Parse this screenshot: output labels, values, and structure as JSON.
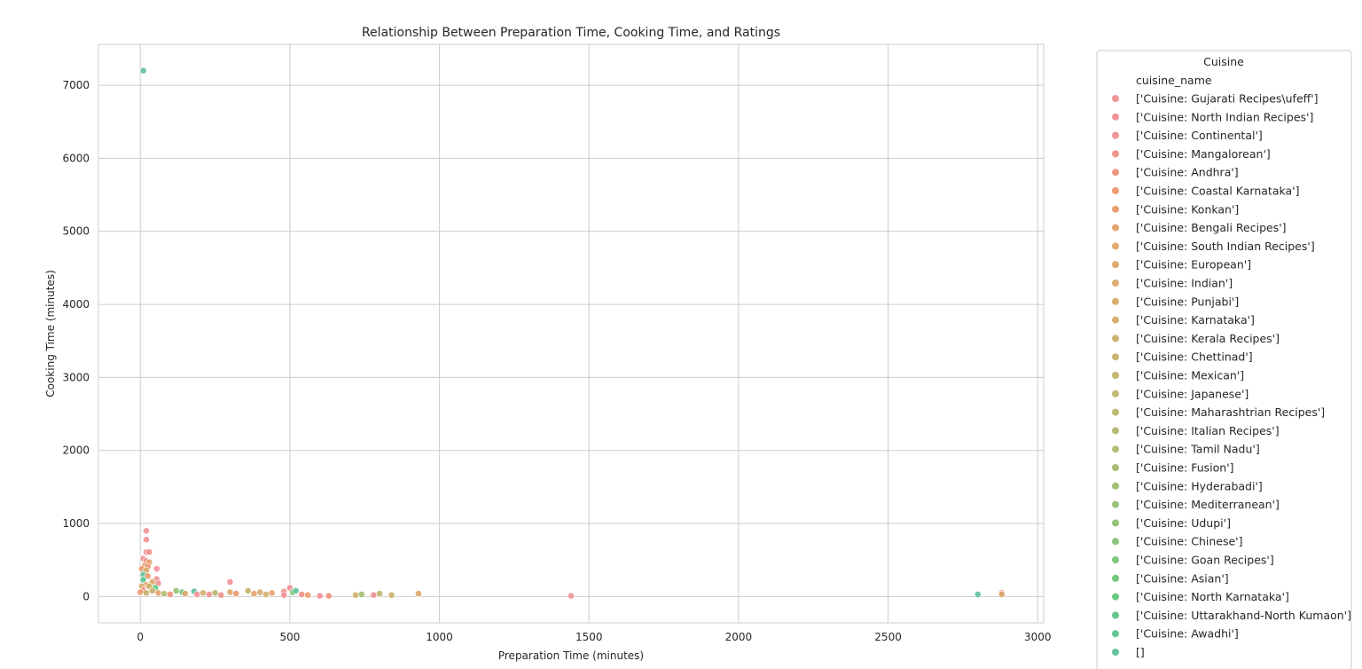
{
  "chart_data": {
    "type": "scatter",
    "title": "Relationship Between Preparation Time, Cooking Time, and Ratings",
    "xlabel": "Preparation Time (minutes)",
    "ylabel": "Cooking Time (minutes)",
    "xlim": [
      -140,
      3020
    ],
    "ylim": [
      -360,
      7560
    ],
    "xticks": [
      0,
      500,
      1000,
      1500,
      2000,
      2500,
      3000
    ],
    "yticks": [
      0,
      1000,
      2000,
      3000,
      4000,
      5000,
      6000,
      7000
    ],
    "grid": true,
    "legend": {
      "title": "Cuisine",
      "subtitle": "cuisine_name",
      "placement": "outside-right",
      "entries": [
        {
          "label": "['Cuisine: Gujarati Recipes\\ufeff']",
          "color": "#f08a8e"
        },
        {
          "label": "['Cuisine: North Indian Recipes']",
          "color": "#f08a8e"
        },
        {
          "label": "['Cuisine: Continental']",
          "color": "#f08b89"
        },
        {
          "label": "['Cuisine: Mangalorean']",
          "color": "#f08b82"
        },
        {
          "label": "['Cuisine: Andhra']",
          "color": "#ef8c73"
        },
        {
          "label": "['Cuisine: Coastal Karnataka']",
          "color": "#ec9162"
        },
        {
          "label": "['Cuisine: Konkan']",
          "color": "#e99660"
        },
        {
          "label": "['Cuisine: Bengali Recipes']",
          "color": "#e49b60"
        },
        {
          "label": "['Cuisine: South Indian Recipes']",
          "color": "#e09e60"
        },
        {
          "label": "['Cuisine: European']",
          "color": "#dca160"
        },
        {
          "label": "['Cuisine: Indian']",
          "color": "#d9a35f"
        },
        {
          "label": "['Cuisine: Punjabi']",
          "color": "#d5a55f"
        },
        {
          "label": "['Cuisine: Karnataka']",
          "color": "#d0a860"
        },
        {
          "label": "['Cuisine: Kerala Recipes']",
          "color": "#cbaa60"
        },
        {
          "label": "['Cuisine: Chettinad']",
          "color": "#c6ac60"
        },
        {
          "label": "['Cuisine: Mexican']",
          "color": "#c1ae61"
        },
        {
          "label": "['Cuisine: Japanese']",
          "color": "#bbb062"
        },
        {
          "label": "['Cuisine: Maharashtrian Recipes']",
          "color": "#b5b263"
        },
        {
          "label": "['Cuisine: Italian Recipes']",
          "color": "#aeb464"
        },
        {
          "label": "['Cuisine: Tamil Nadu']",
          "color": "#a7b666"
        },
        {
          "label": "['Cuisine: Fusion']",
          "color": "#a0b867"
        },
        {
          "label": "['Cuisine: Hyderabadi']",
          "color": "#98ba68"
        },
        {
          "label": "['Cuisine: Mediterranean']",
          "color": "#8fbc69"
        },
        {
          "label": "['Cuisine: Udupi']",
          "color": "#86be6a"
        },
        {
          "label": "['Cuisine: Chinese']",
          "color": "#7cbf6b"
        },
        {
          "label": "['Cuisine: Goan Recipes']",
          "color": "#72c06c"
        },
        {
          "label": "['Cuisine: Asian']",
          "color": "#66c16e"
        },
        {
          "label": "['Cuisine: North Karnataka']",
          "color": "#5ac173"
        },
        {
          "label": "['Cuisine: Uttarakhand-North Kumaon']",
          "color": "#54c17c"
        },
        {
          "label": "['Cuisine: Awadhi']",
          "color": "#52c087"
        },
        {
          "label": "[]",
          "color": "#55bd92"
        }
      ]
    },
    "points": [
      {
        "x": 10,
        "y": 7200,
        "c": 30
      },
      {
        "x": 20,
        "y": 900,
        "c": 1
      },
      {
        "x": 20,
        "y": 780,
        "c": 2
      },
      {
        "x": 20,
        "y": 610,
        "c": 0
      },
      {
        "x": 30,
        "y": 610,
        "c": 3
      },
      {
        "x": 10,
        "y": 520,
        "c": 1
      },
      {
        "x": 20,
        "y": 490,
        "c": 2
      },
      {
        "x": 30,
        "y": 470,
        "c": 8
      },
      {
        "x": 15,
        "y": 430,
        "c": 9
      },
      {
        "x": 25,
        "y": 410,
        "c": 4
      },
      {
        "x": 5,
        "y": 380,
        "c": 6
      },
      {
        "x": 55,
        "y": 380,
        "c": 1
      },
      {
        "x": 20,
        "y": 360,
        "c": 12
      },
      {
        "x": 10,
        "y": 300,
        "c": 30
      },
      {
        "x": 25,
        "y": 280,
        "c": 5
      },
      {
        "x": 55,
        "y": 240,
        "c": 0
      },
      {
        "x": 10,
        "y": 230,
        "c": 29
      },
      {
        "x": 40,
        "y": 200,
        "c": 10
      },
      {
        "x": 60,
        "y": 180,
        "c": 2
      },
      {
        "x": 20,
        "y": 160,
        "c": 7
      },
      {
        "x": 5,
        "y": 140,
        "c": 11
      },
      {
        "x": 30,
        "y": 140,
        "c": 13
      },
      {
        "x": 50,
        "y": 120,
        "c": 28
      },
      {
        "x": 10,
        "y": 90,
        "c": 3
      },
      {
        "x": 40,
        "y": 80,
        "c": 14
      },
      {
        "x": 0,
        "y": 60,
        "c": 6
      },
      {
        "x": 20,
        "y": 50,
        "c": 15
      },
      {
        "x": 60,
        "y": 50,
        "c": 8
      },
      {
        "x": 80,
        "y": 40,
        "c": 18
      },
      {
        "x": 100,
        "y": 30,
        "c": 4
      },
      {
        "x": 120,
        "y": 80,
        "c": 22
      },
      {
        "x": 140,
        "y": 60,
        "c": 26
      },
      {
        "x": 150,
        "y": 40,
        "c": 9
      },
      {
        "x": 180,
        "y": 70,
        "c": 30
      },
      {
        "x": 190,
        "y": 30,
        "c": 1
      },
      {
        "x": 210,
        "y": 50,
        "c": 12
      },
      {
        "x": 230,
        "y": 30,
        "c": 0
      },
      {
        "x": 250,
        "y": 50,
        "c": 17
      },
      {
        "x": 270,
        "y": 20,
        "c": 3
      },
      {
        "x": 300,
        "y": 200,
        "c": 0
      },
      {
        "x": 300,
        "y": 60,
        "c": 10
      },
      {
        "x": 320,
        "y": 40,
        "c": 5
      },
      {
        "x": 360,
        "y": 80,
        "c": 14
      },
      {
        "x": 380,
        "y": 40,
        "c": 8
      },
      {
        "x": 400,
        "y": 60,
        "c": 11
      },
      {
        "x": 420,
        "y": 30,
        "c": 13
      },
      {
        "x": 440,
        "y": 50,
        "c": 7
      },
      {
        "x": 480,
        "y": 70,
        "c": 2
      },
      {
        "x": 480,
        "y": 20,
        "c": 1
      },
      {
        "x": 500,
        "y": 120,
        "c": 0
      },
      {
        "x": 510,
        "y": 60,
        "c": 25
      },
      {
        "x": 520,
        "y": 80,
        "c": 30
      },
      {
        "x": 540,
        "y": 30,
        "c": 3
      },
      {
        "x": 560,
        "y": 20,
        "c": 6
      },
      {
        "x": 600,
        "y": 10,
        "c": 1
      },
      {
        "x": 630,
        "y": 10,
        "c": 4
      },
      {
        "x": 720,
        "y": 20,
        "c": 12
      },
      {
        "x": 740,
        "y": 30,
        "c": 20
      },
      {
        "x": 780,
        "y": 20,
        "c": 0
      },
      {
        "x": 800,
        "y": 40,
        "c": 16
      },
      {
        "x": 840,
        "y": 20,
        "c": 14
      },
      {
        "x": 930,
        "y": 40,
        "c": 9
      },
      {
        "x": 1440,
        "y": 10,
        "c": 0
      },
      {
        "x": 2800,
        "y": 30,
        "c": 30
      },
      {
        "x": 2880,
        "y": 50,
        "c": 0
      },
      {
        "x": 2880,
        "y": 30,
        "c": 10
      }
    ]
  }
}
